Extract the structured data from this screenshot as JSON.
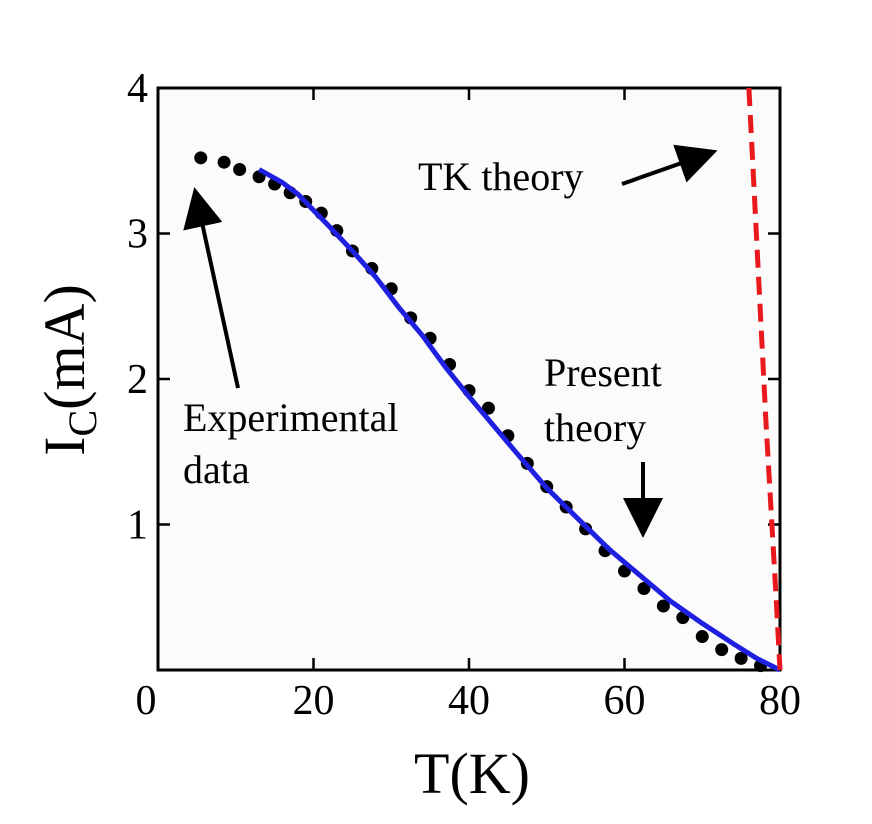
{
  "chart_data": {
    "type": "scatter",
    "xlabel": "T(K)",
    "ylabel_main": "I",
    "ylabel_sub": "C",
    "ylabel_rest": "(mA)",
    "xlim": [
      0,
      80
    ],
    "ylim": [
      0,
      4
    ],
    "x_ticks": [
      0,
      20,
      40,
      60,
      80
    ],
    "x_tick_labels": [
      "0",
      "20",
      "40",
      "60",
      "80"
    ],
    "y_ticks": [
      1,
      2,
      3,
      4
    ],
    "y_tick_labels": [
      "1",
      "2",
      "3",
      "4"
    ],
    "grid": false,
    "series": [
      {
        "kind": "points",
        "color": "#000000",
        "points": [
          [
            5.5,
            3.52
          ],
          [
            8.5,
            3.49
          ],
          [
            10.5,
            3.44
          ],
          [
            13,
            3.39
          ],
          [
            15,
            3.34
          ],
          [
            17,
            3.28
          ],
          [
            19,
            3.22
          ],
          [
            21,
            3.14
          ],
          [
            23,
            3.02
          ],
          [
            25,
            2.88
          ],
          [
            27.5,
            2.76
          ],
          [
            30,
            2.62
          ],
          [
            32.5,
            2.42
          ],
          [
            35,
            2.28
          ],
          [
            37.5,
            2.1
          ],
          [
            40,
            1.92
          ],
          [
            42.5,
            1.8
          ],
          [
            45,
            1.61
          ],
          [
            47.5,
            1.42
          ],
          [
            50,
            1.26
          ],
          [
            52.5,
            1.12
          ],
          [
            55,
            0.97
          ],
          [
            57.5,
            0.82
          ],
          [
            60,
            0.68
          ],
          [
            62.5,
            0.56
          ],
          [
            65,
            0.44
          ],
          [
            67.5,
            0.36
          ],
          [
            70,
            0.23
          ],
          [
            72.5,
            0.14
          ],
          [
            75,
            0.08
          ],
          [
            77.5,
            0.03
          ]
        ]
      },
      {
        "kind": "line",
        "color": "#1f1fe0",
        "dashed": false,
        "points": [
          [
            13,
            3.44
          ],
          [
            16,
            3.35
          ],
          [
            18,
            3.27
          ],
          [
            20,
            3.16
          ],
          [
            22,
            3.05
          ],
          [
            25,
            2.88
          ],
          [
            28,
            2.7
          ],
          [
            31,
            2.49
          ],
          [
            34,
            2.3
          ],
          [
            37,
            2.08
          ],
          [
            40,
            1.88
          ],
          [
            43,
            1.69
          ],
          [
            46,
            1.5
          ],
          [
            50,
            1.25
          ],
          [
            54,
            1.04
          ],
          [
            58,
            0.83
          ],
          [
            62,
            0.65
          ],
          [
            66,
            0.47
          ],
          [
            70,
            0.32
          ],
          [
            74,
            0.18
          ],
          [
            77,
            0.08
          ],
          [
            80,
            0.0
          ]
        ]
      },
      {
        "kind": "line",
        "color": "#e8191c",
        "dashed": true,
        "points": [
          [
            76,
            4.0
          ],
          [
            78.2,
            1.7
          ],
          [
            79.5,
            0.5
          ],
          [
            80,
            0.0
          ]
        ]
      }
    ],
    "annotations": {
      "experimental_line1": "Experimental",
      "experimental_line2": "data",
      "present_line1": "Present",
      "present_line2": "theory",
      "tk": "TK theory"
    }
  }
}
